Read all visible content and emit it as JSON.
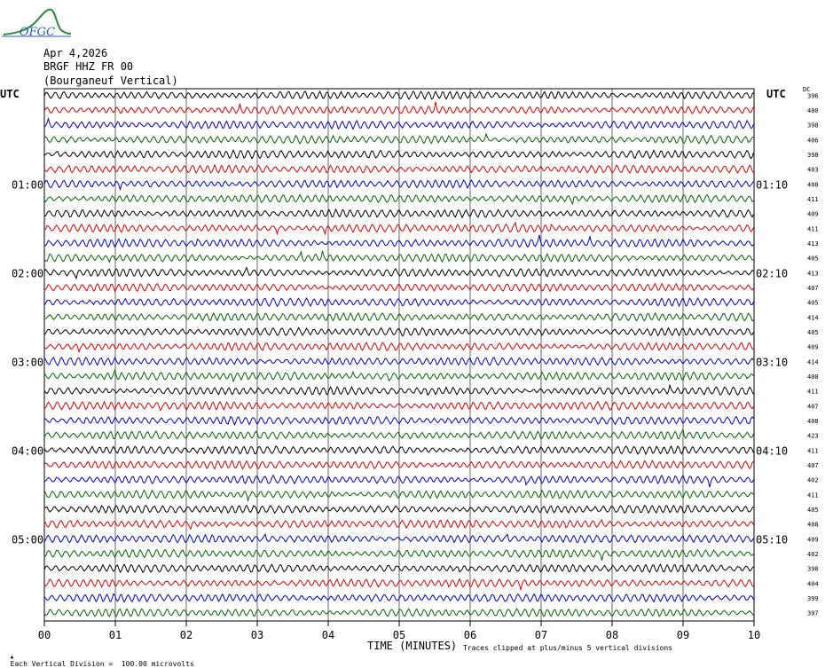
{
  "header": {
    "date": "Apr 4,2026",
    "station": "BRGF HHZ FR 00",
    "location": "(Bourganeuf Vertical)"
  },
  "logo": {
    "text": "OFGC"
  },
  "utc_left": "UTC",
  "utc_right": "UTC",
  "dc_label": "DC",
  "left_times": [
    {
      "label": "01:00",
      "row": 6
    },
    {
      "label": "02:00",
      "row": 12
    },
    {
      "label": "03:00",
      "row": 18
    },
    {
      "label": "04:00",
      "row": 24
    },
    {
      "label": "05:00",
      "row": 30
    }
  ],
  "right_times": [
    {
      "label": "01:10",
      "row": 6
    },
    {
      "label": "02:10",
      "row": 12
    },
    {
      "label": "03:10",
      "row": 18
    },
    {
      "label": "04:10",
      "row": 24
    },
    {
      "label": "05:10",
      "row": 30
    }
  ],
  "dc_values": [
    "396",
    "400",
    "398",
    "406",
    "398",
    "403",
    "408",
    "411",
    "409",
    "411",
    "413",
    "405",
    "413",
    "407",
    "405",
    "414",
    "405",
    "409",
    "414",
    "408",
    "411",
    "407",
    "408",
    "423",
    "411",
    "407",
    "402",
    "411",
    "405",
    "408",
    "409",
    "402",
    "398",
    "404",
    "399",
    "397"
  ],
  "trace_colors": [
    "#000000",
    "#dd0000",
    "#0000cc",
    "#006600"
  ],
  "x_ticks": [
    "00",
    "01",
    "02",
    "03",
    "04",
    "05",
    "06",
    "07",
    "08",
    "09",
    "10"
  ],
  "x_label": "TIME (MINUTES)",
  "footer_left": "Each Vertical Division =  100.00 microvolts",
  "footer_right": "Traces clipped at plus/minus 5 vertical divisions"
}
